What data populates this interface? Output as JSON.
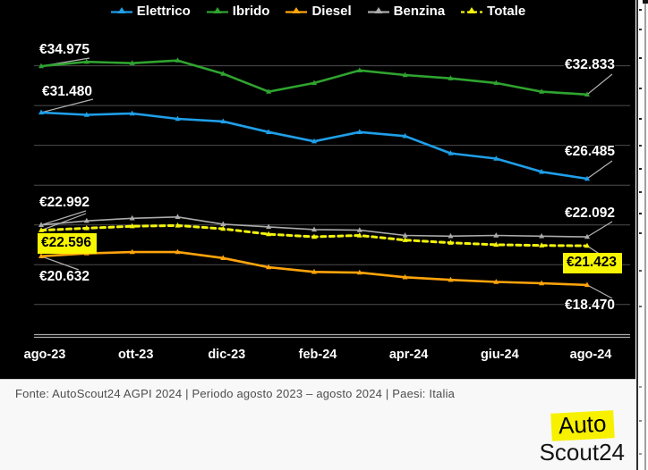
{
  "legend": {
    "items": [
      {
        "label": "Elettrico",
        "color": "#1F9FE9",
        "dashed": false
      },
      {
        "label": "Ibrido",
        "color": "#2FA42F",
        "dashed": false
      },
      {
        "label": "Diesel",
        "color": "#FFA40A",
        "dashed": false
      },
      {
        "label": "Benzina",
        "color": "#ABABAB",
        "dashed": false
      },
      {
        "label": "Totale",
        "color": "#F2F20C",
        "dashed": true
      }
    ]
  },
  "chart_data": {
    "type": "line",
    "x": [
      "ago-23",
      "set-23",
      "ott-23",
      "nov-23",
      "dic-23",
      "gen-24",
      "feb-24",
      "mar-24",
      "apr-24",
      "mag-24",
      "giu-24",
      "lug-24",
      "ago-24"
    ],
    "x_tick_labels": [
      "ago-23",
      "ott-23",
      "dic-23",
      "feb-24",
      "apr-24",
      "giu-24",
      "ago-24"
    ],
    "y_unit": "EUR",
    "ylim": [
      14500,
      37000
    ],
    "y_gridlines": [
      35000,
      32000,
      29000,
      26000,
      23000,
      20000,
      17000
    ],
    "grid": true,
    "legend_position": "top",
    "series": [
      {
        "name": "Elettrico",
        "color": "#1F9FE9",
        "dashed": false,
        "values": [
          31480,
          31300,
          31400,
          31000,
          30800,
          30000,
          29300,
          30000,
          29700,
          28400,
          28000,
          27000,
          26485
        ],
        "start_label": "€31.480",
        "end_label": "€26.485"
      },
      {
        "name": "Ibrido",
        "color": "#2FA42F",
        "dashed": false,
        "values": [
          34975,
          35300,
          35200,
          35400,
          34400,
          33050,
          33700,
          34650,
          34300,
          34050,
          33700,
          33050,
          32833
        ],
        "start_label": "€34.975",
        "end_label": "€32.833"
      },
      {
        "name": "Diesel",
        "color": "#FFA40A",
        "dashed": false,
        "values": [
          20632,
          20850,
          20950,
          20950,
          20500,
          19800,
          19450,
          19400,
          19050,
          18850,
          18700,
          18600,
          18470
        ],
        "start_label": "€20.632",
        "end_label": "€18.470"
      },
      {
        "name": "Benzina",
        "color": "#ABABAB",
        "dashed": false,
        "values": [
          22992,
          23300,
          23500,
          23600,
          23050,
          22850,
          22650,
          22600,
          22200,
          22150,
          22200,
          22150,
          22092
        ],
        "start_label": "€22.992",
        "end_label": "€22.092"
      },
      {
        "name": "Totale",
        "color": "#F2F20C",
        "dashed": true,
        "values": [
          22596,
          22750,
          22900,
          22950,
          22700,
          22300,
          22100,
          22200,
          21850,
          21650,
          21500,
          21450,
          21423
        ],
        "start_label": "€22.596",
        "end_label": "€21.423"
      }
    ]
  },
  "callouts": {
    "ibrido_start": {
      "text": "€34.975",
      "highlight": false
    },
    "elettrico_start": {
      "text": "€31.480",
      "highlight": false
    },
    "benzina_start": {
      "text": "€22.992",
      "highlight": false
    },
    "totale_start": {
      "text": "€22.596",
      "highlight": true
    },
    "diesel_start": {
      "text": "€20.632",
      "highlight": false
    },
    "ibrido_end": {
      "text": "€32.833",
      "highlight": false
    },
    "elettrico_end": {
      "text": "€26.485",
      "highlight": false
    },
    "benzina_end": {
      "text": "€22.092",
      "highlight": false
    },
    "totale_end": {
      "text": "€21.423",
      "highlight": true
    },
    "diesel_end": {
      "text": "€18.470",
      "highlight": false
    }
  },
  "footer": {
    "source_line": "Fonte: AutoScout24 AGPI 2024 | Periodo agosto 2023 – agosto 2024 | Paesi: Italia",
    "logo": {
      "line1": "Auto",
      "line2": "Scout24"
    }
  },
  "colors": {
    "chart_background": "#000000",
    "highlight_yellow": "#F7F500",
    "gridline": "#4D4D4D",
    "axis_line": "#ABABAB",
    "leader_line": "#B3B3B3",
    "footer_background": "#F8F8F8",
    "footer_text": "#4D4D4D",
    "tick_label": "#FFFFFF"
  }
}
